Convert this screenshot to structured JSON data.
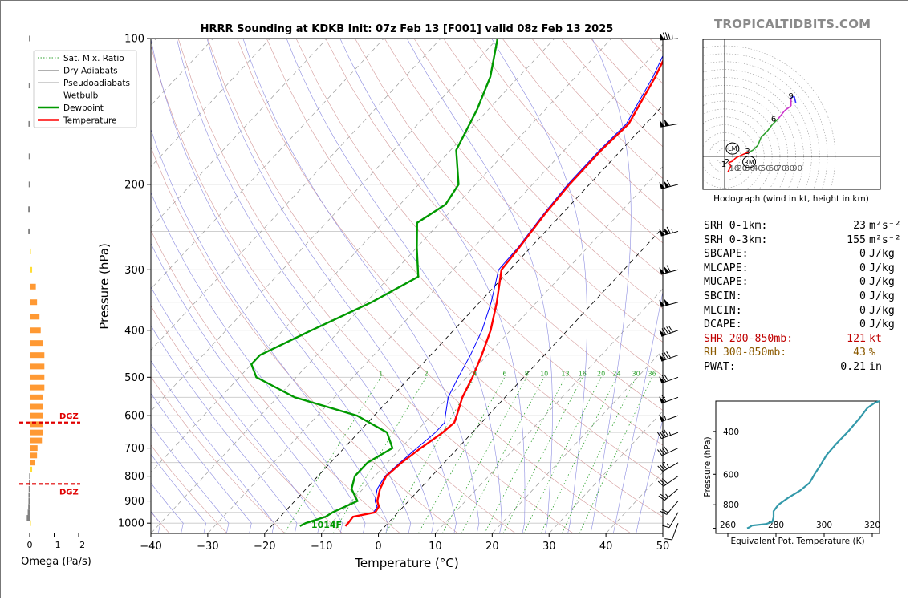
{
  "brand": "TROPICALTIDBITS.COM",
  "chart_data": {
    "type": "skew-t",
    "title": "HRRR Sounding at KDKB Init: 07z Feb 13 [F001] valid 08z Feb 13 2025",
    "xlabel": "Temperature (°C)",
    "ylabel": "Pressure (hPa)",
    "xlim": [
      -40,
      50
    ],
    "ylim": [
      1050,
      100
    ],
    "x_ticks": [
      -40,
      -30,
      -20,
      -10,
      0,
      10,
      20,
      30,
      40,
      50
    ],
    "y_ticks": [
      100,
      200,
      300,
      400,
      500,
      600,
      700,
      800,
      900,
      1000
    ],
    "y_scale": "log",
    "legend_position": "top-left",
    "legend": [
      {
        "label": "Sat. Mix. Ratio",
        "color": "#2ca02c",
        "style": "dotted"
      },
      {
        "label": "Dry Adiabats",
        "color": "#b0b0b0",
        "style": "solid"
      },
      {
        "label": "Pseudoadiabats",
        "color": "#a0a0a0",
        "style": "solid"
      },
      {
        "label": "Wetbulb",
        "color": "#0000ff",
        "style": "solid"
      },
      {
        "label": "Dewpoint",
        "color": "#009900",
        "style": "solid"
      },
      {
        "label": "Temperature",
        "color": "#ff0000",
        "style": "solid"
      }
    ],
    "mixing_ratio_labels": [
      "1",
      "2",
      "4",
      "6",
      "8",
      "10",
      "13",
      "16",
      "20",
      "24",
      "30",
      "36"
    ],
    "surface_label": "1014F",
    "temperature": [
      {
        "p": 1014,
        "t": -7.0
      },
      {
        "p": 1000,
        "t": -7.0
      },
      {
        "p": 970,
        "t": -7.2
      },
      {
        "p": 950,
        "t": -4.0
      },
      {
        "p": 925,
        "t": -4.3
      },
      {
        "p": 900,
        "t": -5.5
      },
      {
        "p": 850,
        "t": -7.0
      },
      {
        "p": 800,
        "t": -8.0
      },
      {
        "p": 750,
        "t": -7.5
      },
      {
        "p": 700,
        "t": -6.5
      },
      {
        "p": 650,
        "t": -5.2
      },
      {
        "p": 620,
        "t": -4.8
      },
      {
        "p": 600,
        "t": -5.5
      },
      {
        "p": 550,
        "t": -7.5
      },
      {
        "p": 500,
        "t": -9.0
      },
      {
        "p": 450,
        "t": -11.0
      },
      {
        "p": 400,
        "t": -13.5
      },
      {
        "p": 350,
        "t": -17.0
      },
      {
        "p": 300,
        "t": -21.5
      },
      {
        "p": 270,
        "t": -22.0
      },
      {
        "p": 230,
        "t": -23.0
      },
      {
        "p": 200,
        "t": -23.5
      },
      {
        "p": 170,
        "t": -23.5
      },
      {
        "p": 150,
        "t": -23.0
      },
      {
        "p": 120,
        "t": -26.0
      },
      {
        "p": 100,
        "t": -29.0
      }
    ],
    "wetbulb": [
      {
        "p": 1014,
        "t": -7.0
      },
      {
        "p": 1000,
        "t": -7.0
      },
      {
        "p": 970,
        "t": -7.3
      },
      {
        "p": 950,
        "t": -4.3
      },
      {
        "p": 925,
        "t": -4.6
      },
      {
        "p": 900,
        "t": -5.9
      },
      {
        "p": 850,
        "t": -7.5
      },
      {
        "p": 800,
        "t": -8.2
      },
      {
        "p": 750,
        "t": -7.8
      },
      {
        "p": 700,
        "t": -7.2
      },
      {
        "p": 650,
        "t": -6.5
      },
      {
        "p": 620,
        "t": -6.5
      },
      {
        "p": 600,
        "t": -7.5
      },
      {
        "p": 550,
        "t": -10.0
      },
      {
        "p": 500,
        "t": -11.5
      },
      {
        "p": 450,
        "t": -13.0
      },
      {
        "p": 400,
        "t": -15.0
      },
      {
        "p": 350,
        "t": -18.0
      },
      {
        "p": 300,
        "t": -22.0
      },
      {
        "p": 270,
        "t": -22.2
      },
      {
        "p": 230,
        "t": -23.2
      },
      {
        "p": 200,
        "t": -23.8
      },
      {
        "p": 170,
        "t": -23.8
      },
      {
        "p": 150,
        "t": -23.4
      },
      {
        "p": 120,
        "t": -26.4
      },
      {
        "p": 100,
        "t": -29.5
      }
    ],
    "dewpoint": [
      {
        "p": 1014,
        "t": -15.0
      },
      {
        "p": 1000,
        "t": -14.5
      },
      {
        "p": 970,
        "t": -12.0
      },
      {
        "p": 950,
        "t": -11.5
      },
      {
        "p": 900,
        "t": -9.0
      },
      {
        "p": 850,
        "t": -12.0
      },
      {
        "p": 800,
        "t": -13.5
      },
      {
        "p": 750,
        "t": -13.5
      },
      {
        "p": 700,
        "t": -11.5
      },
      {
        "p": 650,
        "t": -15.0
      },
      {
        "p": 600,
        "t": -23.0
      },
      {
        "p": 550,
        "t": -37.0
      },
      {
        "p": 500,
        "t": -47.0
      },
      {
        "p": 470,
        "t": -50.0
      },
      {
        "p": 450,
        "t": -50.0
      },
      {
        "p": 400,
        "t": -45.0
      },
      {
        "p": 350,
        "t": -39.0
      },
      {
        "p": 310,
        "t": -35.0
      },
      {
        "p": 270,
        "t": -40.0
      },
      {
        "p": 240,
        "t": -44.0
      },
      {
        "p": 220,
        "t": -42.0
      },
      {
        "p": 200,
        "t": -43.0
      },
      {
        "p": 170,
        "t": -49.0
      },
      {
        "p": 140,
        "t": -52.0
      },
      {
        "p": 120,
        "t": -55.0
      },
      {
        "p": 100,
        "t": -60.0
      }
    ],
    "wind_barbs_kt": [
      {
        "p": 1000,
        "dir": 200,
        "spd": 10
      },
      {
        "p": 950,
        "dir": 210,
        "spd": 15
      },
      {
        "p": 900,
        "dir": 220,
        "spd": 20
      },
      {
        "p": 850,
        "dir": 230,
        "spd": 25
      },
      {
        "p": 800,
        "dir": 235,
        "spd": 30
      },
      {
        "p": 750,
        "dir": 240,
        "spd": 35
      },
      {
        "p": 700,
        "dir": 245,
        "spd": 40
      },
      {
        "p": 650,
        "dir": 250,
        "spd": 45
      },
      {
        "p": 600,
        "dir": 250,
        "spd": 55
      },
      {
        "p": 550,
        "dir": 250,
        "spd": 60
      },
      {
        "p": 500,
        "dir": 250,
        "spd": 70
      },
      {
        "p": 450,
        "dir": 250,
        "spd": 80
      },
      {
        "p": 400,
        "dir": 250,
        "spd": 90
      },
      {
        "p": 350,
        "dir": 255,
        "spd": 100
      },
      {
        "p": 300,
        "dir": 255,
        "spd": 110
      },
      {
        "p": 250,
        "dir": 255,
        "spd": 115
      },
      {
        "p": 200,
        "dir": 255,
        "spd": 110
      },
      {
        "p": 150,
        "dir": 260,
        "spd": 100
      },
      {
        "p": 100,
        "dir": 265,
        "spd": 85
      }
    ]
  },
  "omega": {
    "xlabel": "Omega (Pa/s)",
    "ticks": [
      "0",
      "−1",
      "−2"
    ],
    "dgz_label": "DGZ",
    "dgz_upper_p": 620,
    "dgz_lower_p": 830,
    "values": [
      {
        "p": 1000,
        "v": -0.05
      },
      {
        "p": 975,
        "v": 0.12
      },
      {
        "p": 950,
        "v": 0.08
      },
      {
        "p": 925,
        "v": 0.06
      },
      {
        "p": 900,
        "v": 0.05
      },
      {
        "p": 875,
        "v": 0.05
      },
      {
        "p": 850,
        "v": 0.04
      },
      {
        "p": 825,
        "v": 0.03
      },
      {
        "p": 800,
        "v": 0.02
      },
      {
        "p": 775,
        "v": -0.1
      },
      {
        "p": 750,
        "v": -0.22
      },
      {
        "p": 725,
        "v": -0.3
      },
      {
        "p": 700,
        "v": -0.32
      },
      {
        "p": 675,
        "v": -0.5
      },
      {
        "p": 650,
        "v": -0.55
      },
      {
        "p": 625,
        "v": -0.55
      },
      {
        "p": 600,
        "v": -0.55
      },
      {
        "p": 575,
        "v": -0.55
      },
      {
        "p": 550,
        "v": -0.55
      },
      {
        "p": 525,
        "v": -0.6
      },
      {
        "p": 500,
        "v": -0.6
      },
      {
        "p": 475,
        "v": -0.6
      },
      {
        "p": 450,
        "v": -0.6
      },
      {
        "p": 425,
        "v": -0.55
      },
      {
        "p": 400,
        "v": -0.45
      },
      {
        "p": 375,
        "v": -0.4
      },
      {
        "p": 350,
        "v": -0.3
      },
      {
        "p": 325,
        "v": -0.25
      },
      {
        "p": 300,
        "v": -0.1
      },
      {
        "p": 275,
        "v": -0.05
      },
      {
        "p": 250,
        "v": 0.06
      },
      {
        "p": 225,
        "v": 0.06
      },
      {
        "p": 200,
        "v": 0.04
      },
      {
        "p": 175,
        "v": 0.04
      },
      {
        "p": 150,
        "v": 0.05
      },
      {
        "p": 125,
        "v": 0.04
      },
      {
        "p": 100,
        "v": 0.03
      }
    ]
  },
  "hodograph": {
    "caption": "Hodograph (wind in kt, height in km)",
    "ring_labels": [
      "10",
      "20",
      "30",
      "40",
      "50",
      "60",
      "70",
      "80",
      "90"
    ],
    "height_labels": [
      "1",
      "2",
      "3",
      "6",
      "9"
    ],
    "storm_motion_labels": [
      "LM",
      "RM"
    ],
    "trace": [
      {
        "u": 4,
        "v": -20,
        "seg": "red"
      },
      {
        "u": 6,
        "v": -16,
        "seg": "red"
      },
      {
        "u": 8,
        "v": -12,
        "seg": "red"
      },
      {
        "u": 5,
        "v": -8,
        "seg": "red"
      },
      {
        "u": 10,
        "v": -6,
        "seg": "red"
      },
      {
        "u": 14,
        "v": -2,
        "seg": "red"
      },
      {
        "u": 22,
        "v": 2,
        "seg": "red"
      },
      {
        "u": 32,
        "v": 6,
        "seg": "red"
      },
      {
        "u": 36,
        "v": 8,
        "seg": "green"
      },
      {
        "u": 42,
        "v": 14,
        "seg": "green"
      },
      {
        "u": 46,
        "v": 24,
        "seg": "green"
      },
      {
        "u": 54,
        "v": 32,
        "seg": "green"
      },
      {
        "u": 60,
        "v": 40,
        "seg": "green"
      },
      {
        "u": 68,
        "v": 48,
        "seg": "green"
      },
      {
        "u": 76,
        "v": 58,
        "seg": "magenta"
      },
      {
        "u": 84,
        "v": 64,
        "seg": "magenta"
      },
      {
        "u": 84,
        "v": 74,
        "seg": "magenta"
      },
      {
        "u": 88,
        "v": 76,
        "seg": "blue"
      },
      {
        "u": 90,
        "v": 68,
        "seg": "blue"
      }
    ],
    "height_points": [
      {
        "label": "1",
        "u": 3,
        "v": -10
      },
      {
        "label": "2",
        "u": 7,
        "v": -7
      },
      {
        "label": "3",
        "u": 33,
        "v": 6
      },
      {
        "label": "6",
        "u": 66,
        "v": 47
      },
      {
        "label": "9",
        "u": 88,
        "v": 76
      }
    ],
    "storm_motion": [
      {
        "label": "LM",
        "u": 10,
        "v": 10
      },
      {
        "label": "RM",
        "u": 31,
        "v": -7
      }
    ]
  },
  "params": [
    {
      "label": "SRH 0-1km:",
      "value": "23",
      "unit": "m²s⁻²",
      "color": "#000000"
    },
    {
      "label": "SRH 0-3km:",
      "value": "155",
      "unit": "m²s⁻²",
      "color": "#000000"
    },
    {
      "label": "SBCAPE:",
      "value": "0",
      "unit": "J/kg",
      "color": "#000000"
    },
    {
      "label": "MLCAPE:",
      "value": "0",
      "unit": "J/kg",
      "color": "#000000"
    },
    {
      "label": "MUCAPE:",
      "value": "0",
      "unit": "J/kg",
      "color": "#000000"
    },
    {
      "label": "SBCIN:",
      "value": "0",
      "unit": "J/kg",
      "color": "#000000"
    },
    {
      "label": "MLCIN:",
      "value": "0",
      "unit": "J/kg",
      "color": "#000000"
    },
    {
      "label": "DCAPE:",
      "value": "0",
      "unit": "J/kg",
      "color": "#000000"
    },
    {
      "label": "SHR 200-850mb:",
      "value": "121",
      "unit": "kt",
      "color": "#c00000"
    },
    {
      "label": "RH 300-850mb:",
      "value": "43",
      "unit": "%",
      "color": "#8b5a00"
    },
    {
      "label": "PWAT:",
      "value": "0.21",
      "unit": "in",
      "color": "#000000"
    }
  ],
  "theta_e": {
    "xlabel": "Equivalent Pot. Temperature (K)",
    "ylabel": "Pressure (hPa)",
    "xlim": [
      255,
      323
    ],
    "ylim": [
      1050,
      300
    ],
    "x_ticks": [
      "260",
      "280",
      "300",
      "320"
    ],
    "y_ticks": [
      "400",
      "600",
      "800"
    ],
    "profile": [
      {
        "p": 1000,
        "th": 268.0
      },
      {
        "p": 990,
        "th": 269.0
      },
      {
        "p": 975,
        "th": 270.0
      },
      {
        "p": 960,
        "th": 276.0
      },
      {
        "p": 940,
        "th": 278.5
      },
      {
        "p": 900,
        "th": 279.0
      },
      {
        "p": 850,
        "th": 279.0
      },
      {
        "p": 800,
        "th": 281.0
      },
      {
        "p": 750,
        "th": 285.0
      },
      {
        "p": 700,
        "th": 290.0
      },
      {
        "p": 650,
        "th": 294.0
      },
      {
        "p": 600,
        "th": 296.0
      },
      {
        "p": 550,
        "th": 298.5
      },
      {
        "p": 500,
        "th": 301.0
      },
      {
        "p": 450,
        "th": 305.0
      },
      {
        "p": 400,
        "th": 310.0
      },
      {
        "p": 350,
        "th": 315.0
      },
      {
        "p": 320,
        "th": 318.0
      },
      {
        "p": 305,
        "th": 321.0
      },
      {
        "p": 300,
        "th": 323.0
      }
    ]
  }
}
